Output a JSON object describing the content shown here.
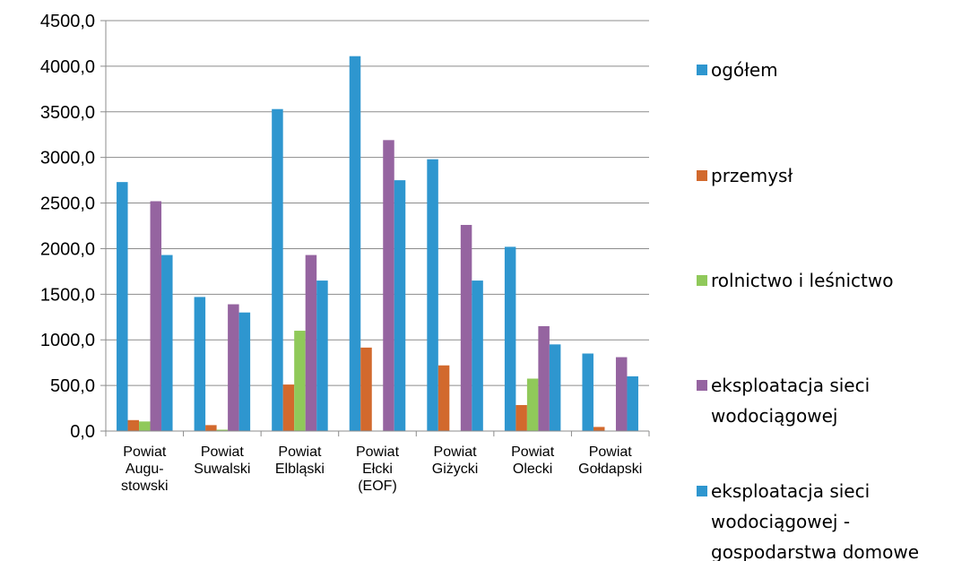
{
  "chart_data": {
    "type": "bar",
    "categories": [
      [
        "Powiat",
        "Augu-",
        "stowski"
      ],
      [
        "Powiat",
        "Suwalski"
      ],
      [
        "Powiat",
        "Elbląski"
      ],
      [
        "Powiat",
        "Ełcki",
        "(EOF)"
      ],
      [
        "Powiat",
        "Giżycki"
      ],
      [
        "Powiat",
        "Olecki"
      ],
      [
        "Powiat",
        "Gołdapski"
      ]
    ],
    "yticks": [
      "0,0",
      "500,0",
      "1000,0",
      "1500,0",
      "2000,0",
      "2500,0",
      "3000,0",
      "3500,0",
      "4000,0",
      "4500,0"
    ],
    "ylim": [
      0,
      4500
    ],
    "grid": true,
    "legend_position": "right",
    "series": [
      {
        "name": [
          "ogółem"
        ],
        "color": "#2e96cf",
        "values": [
          2730,
          1470,
          3530,
          4110,
          2980,
          2020,
          850
        ]
      },
      {
        "name": [
          "przemysł"
        ],
        "color": "#d2692d",
        "values": [
          120,
          65,
          510,
          915,
          720,
          285,
          45
        ]
      },
      {
        "name": [
          "rolnictwo i leśnictwo"
        ],
        "color": "#90c95a",
        "values": [
          105,
          15,
          1100,
          0,
          0,
          575,
          0
        ]
      },
      {
        "name": [
          "eksploatacja sieci",
          "wodociągowej"
        ],
        "color": "#9564a0",
        "values": [
          2520,
          1390,
          1930,
          3190,
          2260,
          1150,
          810
        ]
      },
      {
        "name": [
          "eksploatacja sieci",
          "wodociągowej -",
          "gospodarstwa domowe"
        ],
        "color": "#2e96cf",
        "values": [
          1930,
          1300,
          1650,
          2750,
          1650,
          950,
          600
        ]
      }
    ]
  }
}
